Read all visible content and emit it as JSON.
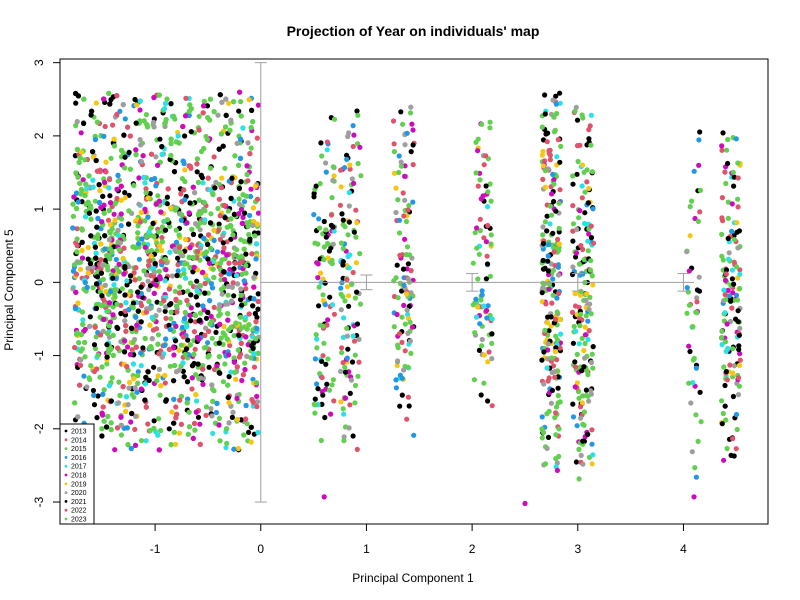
{
  "chart_data": {
    "type": "scatter",
    "title": "Projection of Year on individuals' map",
    "xlabel": "Principal Component 1",
    "ylabel": "Principal Component 5",
    "xlim": [
      -1.9,
      4.8
    ],
    "ylim": [
      -3.3,
      3.05
    ],
    "x_ticks": [
      -1,
      0,
      1,
      2,
      3,
      4
    ],
    "y_ticks": [
      -3,
      -2,
      -1,
      0,
      1,
      2,
      3
    ],
    "grid": false,
    "legend_position": "bottom-left",
    "series": [
      {
        "name": "2013",
        "color": "#000000"
      },
      {
        "name": "2014",
        "color": "#DF536B"
      },
      {
        "name": "2015",
        "color": "#61D04F"
      },
      {
        "name": "2016",
        "color": "#2297E6"
      },
      {
        "name": "2017",
        "color": "#28E2E5"
      },
      {
        "name": "2018",
        "color": "#CD0BBC"
      },
      {
        "name": "2019",
        "color": "#F5C710"
      },
      {
        "name": "2020",
        "color": "#9E9E9E"
      },
      {
        "name": "2021",
        "color": "#000000"
      },
      {
        "name": "2022",
        "color": "#DF536B"
      },
      {
        "name": "2023",
        "color": "#61D04F"
      }
    ],
    "point_clusters": [
      {
        "x_range": [
          -1.78,
          -0.02
        ],
        "y_range": [
          -2.3,
          2.6
        ],
        "approx_points": 2600
      },
      {
        "x_center": 0.6,
        "x_spread": 0.1,
        "y_range": [
          -2.2,
          2.3
        ],
        "approx_points": 110
      },
      {
        "x_center": 0.85,
        "x_spread": 0.1,
        "y_range": [
          -2.4,
          2.6
        ],
        "approx_points": 120
      },
      {
        "x_center": 1.35,
        "x_spread": 0.1,
        "y_range": [
          -2.1,
          2.4
        ],
        "approx_points": 120
      },
      {
        "x_center": 2.1,
        "x_spread": 0.09,
        "y_range": [
          -1.8,
          2.2
        ],
        "approx_points": 90
      },
      {
        "x_center": 2.75,
        "x_spread": 0.09,
        "y_range": [
          -2.6,
          2.6
        ],
        "approx_points": 240
      },
      {
        "x_center": 3.05,
        "x_spread": 0.1,
        "y_range": [
          -2.7,
          2.4
        ],
        "approx_points": 200
      },
      {
        "x_center": 4.1,
        "x_spread": 0.07,
        "y_range": [
          -2.95,
          2.5
        ],
        "approx_points": 50
      },
      {
        "x_center": 4.45,
        "x_spread": 0.09,
        "y_range": [
          -2.5,
          2.2
        ],
        "approx_points": 160
      }
    ],
    "outliers": [
      {
        "x": 2.5,
        "y": -3.02
      },
      {
        "x": 0.6,
        "y": -2.93
      },
      {
        "x": 4.1,
        "y": -2.93
      }
    ],
    "centroids": [
      {
        "x": 0.0,
        "lo": -3.0,
        "hi": 3.0
      },
      {
        "x": 1.0,
        "lo": -0.1,
        "hi": 0.1
      },
      {
        "x": 2.0,
        "lo": -0.12,
        "hi": 0.12
      },
      {
        "x": 3.0,
        "lo": -0.12,
        "hi": 0.12
      },
      {
        "x": 4.0,
        "lo": -0.12,
        "hi": 0.12
      }
    ],
    "reference_line_y": 0
  }
}
